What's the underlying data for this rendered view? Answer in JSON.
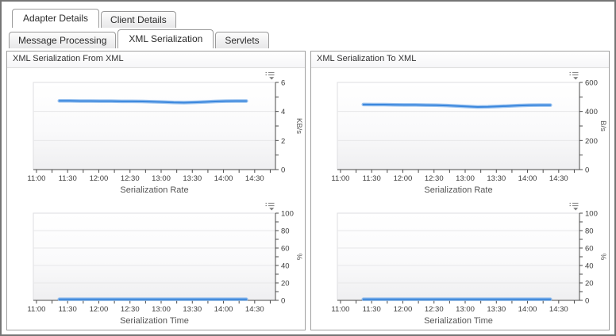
{
  "tabs": {
    "primary": [
      {
        "label": "Adapter Details",
        "active": true
      },
      {
        "label": "Client Details",
        "active": false
      }
    ],
    "secondary": [
      {
        "label": "Message Processing",
        "active": false
      },
      {
        "label": "XML Serialization",
        "active": true
      },
      {
        "label": "Servlets",
        "active": false
      }
    ]
  },
  "panels": [
    {
      "title": "XML Serialization From XML"
    },
    {
      "title": "XML Serialization To XML"
    }
  ],
  "icons": {
    "legend_dropdown_icon": "≡▾"
  },
  "colors": {
    "line": "#3b87dd",
    "line_halo": "#8ab9ed",
    "axis": "#4b4b4b",
    "grid": "#e7e7e9",
    "plot_border": "#dedee0",
    "tab_border": "#9a9a9a",
    "panel_border": "#a0a0a0",
    "frame_border": "#757575"
  },
  "chart_data": [
    {
      "type": "line",
      "panel": "XML Serialization From XML",
      "title": "Serialization Rate",
      "ylabel": "KB/s",
      "ylim": [
        0,
        6
      ],
      "y_major_step": 2,
      "y_minor_step": 1,
      "x_domain": [
        "10:57",
        "14:50"
      ],
      "x_minor_interval_min": 15,
      "x_ticks_labeled": [
        "11:00",
        "11:30",
        "12:00",
        "12:30",
        "13:00",
        "13:30",
        "14:00",
        "14:30"
      ],
      "x": [
        "11:22",
        "11:32",
        "11:42",
        "11:52",
        "12:02",
        "12:12",
        "12:22",
        "12:32",
        "12:42",
        "12:52",
        "13:02",
        "13:12",
        "13:22",
        "13:32",
        "13:42",
        "13:52",
        "14:02",
        "14:12",
        "14:22"
      ],
      "values": [
        4.73,
        4.73,
        4.72,
        4.72,
        4.71,
        4.71,
        4.7,
        4.7,
        4.69,
        4.67,
        4.65,
        4.62,
        4.61,
        4.63,
        4.66,
        4.69,
        4.71,
        4.72,
        4.72
      ],
      "legend_position": "top-right",
      "grid": true
    },
    {
      "type": "line",
      "panel": "XML Serialization From XML",
      "title": "Serialization Time",
      "ylabel": "%",
      "ylim": [
        0,
        100
      ],
      "y_major_step": 20,
      "y_minor_step": 10,
      "x_domain": [
        "10:57",
        "14:50"
      ],
      "x_minor_interval_min": 15,
      "x_ticks_labeled": [
        "11:00",
        "11:30",
        "12:00",
        "12:30",
        "13:00",
        "13:30",
        "14:00",
        "14:30"
      ],
      "x": [
        "11:22",
        "11:32",
        "11:42",
        "11:52",
        "12:02",
        "12:12",
        "12:22",
        "12:32",
        "12:42",
        "12:52",
        "13:02",
        "13:12",
        "13:22",
        "13:32",
        "13:42",
        "13:52",
        "14:02",
        "14:12",
        "14:22"
      ],
      "values": [
        1.2,
        1.2,
        1.2,
        1.2,
        1.2,
        1.2,
        1.2,
        1.2,
        1.2,
        1.2,
        1.2,
        1.2,
        1.2,
        1.2,
        1.2,
        1.2,
        1.2,
        1.2,
        1.2
      ],
      "legend_position": "top-right",
      "grid": true
    },
    {
      "type": "line",
      "panel": "XML Serialization To XML",
      "title": "Serialization Rate",
      "ylabel": "B/s",
      "ylim": [
        0,
        600
      ],
      "y_major_step": 200,
      "y_minor_step": 100,
      "x_domain": [
        "10:57",
        "14:50"
      ],
      "x_minor_interval_min": 15,
      "x_ticks_labeled": [
        "11:00",
        "11:30",
        "12:00",
        "12:30",
        "13:00",
        "13:30",
        "14:00",
        "14:30"
      ],
      "x": [
        "11:22",
        "11:32",
        "11:42",
        "11:52",
        "12:02",
        "12:12",
        "12:22",
        "12:32",
        "12:42",
        "12:52",
        "13:02",
        "13:12",
        "13:22",
        "13:32",
        "13:42",
        "13:52",
        "14:02",
        "14:12",
        "14:22"
      ],
      "values": [
        448,
        447,
        447,
        446,
        445,
        445,
        444,
        443,
        441,
        438,
        434,
        431,
        432,
        435,
        438,
        441,
        443,
        444,
        444
      ],
      "legend_position": "top-right",
      "grid": true
    },
    {
      "type": "line",
      "panel": "XML Serialization To XML",
      "title": "Serialization Time",
      "ylabel": "%",
      "ylim": [
        0,
        100
      ],
      "y_major_step": 20,
      "y_minor_step": 10,
      "x_domain": [
        "10:57",
        "14:50"
      ],
      "x_minor_interval_min": 15,
      "x_ticks_labeled": [
        "11:00",
        "11:30",
        "12:00",
        "12:30",
        "13:00",
        "13:30",
        "14:00",
        "14:30"
      ],
      "x": [
        "11:22",
        "11:32",
        "11:42",
        "11:52",
        "12:02",
        "12:12",
        "12:22",
        "12:32",
        "12:42",
        "12:52",
        "13:02",
        "13:12",
        "13:22",
        "13:32",
        "13:42",
        "13:52",
        "14:02",
        "14:12",
        "14:22"
      ],
      "values": [
        1.2,
        1.2,
        1.2,
        1.2,
        1.2,
        1.2,
        1.2,
        1.2,
        1.2,
        1.2,
        1.2,
        1.2,
        1.2,
        1.2,
        1.2,
        1.2,
        1.2,
        1.2,
        1.2
      ],
      "legend_position": "top-right",
      "grid": true
    }
  ]
}
